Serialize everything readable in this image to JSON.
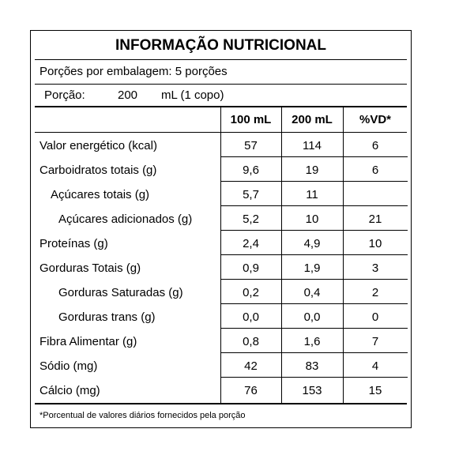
{
  "header": {
    "title": "INFORMAÇÃO NUTRICIONAL",
    "servings": "Porções por embalagem: 5 porções",
    "portion_label": "Porção:",
    "portion_amount": "200",
    "portion_unit": "mL (1 copo)"
  },
  "table": {
    "columns": [
      "100 mL",
      "200 mL",
      "%VD*"
    ],
    "rows": [
      [
        "Valor energético (kcal)",
        "57",
        "114",
        "6"
      ],
      [
        "Carboidratos totais (g)",
        "9,6",
        "19",
        "6"
      ],
      [
        "Açúcares totais (g)",
        "5,7",
        "11",
        null
      ],
      [
        "Açúcares adicionados (g)",
        "5,2",
        "10",
        "21"
      ],
      [
        "Proteínas (g)",
        "2,4",
        "4,9",
        "10"
      ],
      [
        "Gorduras Totais (g)",
        "0,9",
        "1,9",
        "3"
      ],
      [
        "Gorduras Saturadas (g)",
        "0,2",
        "0,4",
        "2"
      ],
      [
        "Gorduras trans (g)",
        "0,0",
        "0,0",
        "0"
      ],
      [
        "Fibra Alimentar (g)",
        "0,8",
        "1,6",
        "7"
      ],
      [
        "Sódio (mg)",
        "42",
        "83",
        "4"
      ],
      [
        "Cálcio (mg)",
        "76",
        "153",
        "15"
      ]
    ]
  },
  "footnote": "*Porcentual de valores diários fornecidos pela porção"
}
